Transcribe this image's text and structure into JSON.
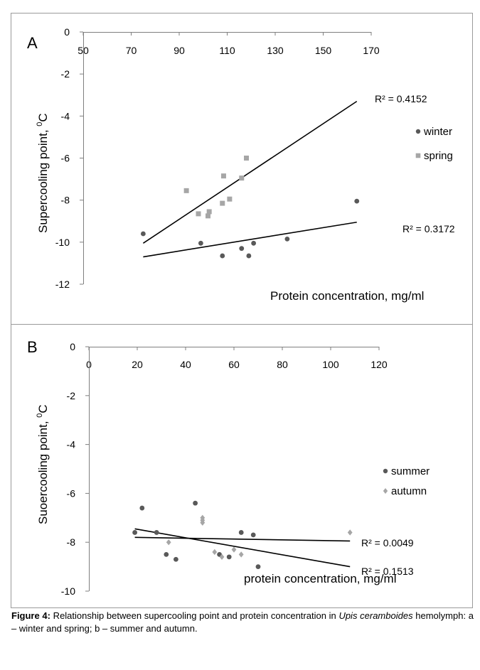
{
  "chart_data": [
    {
      "panel": "A",
      "type": "scatter",
      "xlabel": "Protein concentration, mg/ml",
      "ylabel": "Supercooling point, 0C",
      "ylabel_main": "Supercooling point, ",
      "ylabel_sup": "0",
      "ylabel_unit": "C",
      "xlim": [
        50,
        170
      ],
      "ylim": [
        -12,
        0
      ],
      "x_ticks": [
        "50",
        "70",
        "90",
        "110",
        "130",
        "150",
        "170"
      ],
      "y_ticks": [
        "0",
        "-2",
        "-4",
        "-6",
        "-8",
        "-10",
        "-12"
      ],
      "legend_position": "right",
      "series": [
        {
          "name": "winter",
          "marker": "circle",
          "color": "#595959",
          "points": [
            [
              75,
              -9.6
            ],
            [
              99,
              -10.05
            ],
            [
              108,
              -10.65
            ],
            [
              116,
              -10.3
            ],
            [
              119,
              -10.65
            ],
            [
              121,
              -10.05
            ],
            [
              135,
              -9.85
            ],
            [
              164,
              -8.05
            ]
          ],
          "trendline": {
            "from": [
              75,
              -10.7
            ],
            "to": [
              164,
              -9.05
            ],
            "r2_label": "R² = 0.3172"
          }
        },
        {
          "name": "spring",
          "marker": "square",
          "color": "#a6a6a6",
          "points": [
            [
              93,
              -7.55
            ],
            [
              98,
              -8.65
            ],
            [
              102,
              -8.75
            ],
            [
              102.5,
              -8.55
            ],
            [
              108,
              -8.15
            ],
            [
              108.5,
              -6.85
            ],
            [
              111,
              -7.95
            ],
            [
              116,
              -6.95
            ],
            [
              118,
              -6.0
            ]
          ],
          "trendline": {
            "from": [
              75,
              -10.05
            ],
            "to": [
              164,
              -3.3
            ],
            "r2_label": "R² = 0.4152"
          }
        }
      ]
    },
    {
      "panel": "B",
      "type": "scatter",
      "xlabel": "protein concentration, mg/ml",
      "ylabel": "Suoercooling point, 0C",
      "ylabel_main": "Suoercooling point, ",
      "ylabel_sup": "0",
      "ylabel_unit": "C",
      "xlim": [
        0,
        120
      ],
      "ylim": [
        -10,
        0
      ],
      "x_ticks": [
        "0",
        "20",
        "40",
        "60",
        "80",
        "100",
        "120"
      ],
      "y_ticks": [
        "0",
        "-2",
        "-4",
        "-6",
        "-8",
        "-10"
      ],
      "legend_position": "right",
      "series": [
        {
          "name": "summer",
          "marker": "circle",
          "color": "#595959",
          "points": [
            [
              19,
              -7.6
            ],
            [
              22,
              -6.6
            ],
            [
              28,
              -7.6
            ],
            [
              32,
              -8.5
            ],
            [
              36,
              -8.7
            ],
            [
              44,
              -6.4
            ],
            [
              54,
              -8.5
            ],
            [
              58,
              -8.6
            ],
            [
              63,
              -7.6
            ],
            [
              68,
              -7.7
            ],
            [
              70,
              -9.0
            ]
          ],
          "trendline": {
            "from": [
              19,
              -7.45
            ],
            "to": [
              108,
              -9.0
            ],
            "r2_label": "R² = 0.1513"
          }
        },
        {
          "name": "autumn",
          "marker": "diamond",
          "color": "#a6a6a6",
          "points": [
            [
              33,
              -8.0
            ],
            [
              47,
              -7.0
            ],
            [
              47,
              -7.1
            ],
            [
              47,
              -7.2
            ],
            [
              52,
              -8.4
            ],
            [
              55,
              -8.6
            ],
            [
              60,
              -8.3
            ],
            [
              63,
              -8.5
            ],
            [
              108,
              -7.6
            ]
          ],
          "trendline": {
            "from": [
              19,
              -7.8
            ],
            "to": [
              108,
              -7.95
            ],
            "r2_label": "R² = 0.0049"
          }
        }
      ]
    }
  ],
  "caption": {
    "label": "Figure 4:",
    "text_before_species": " Relationship between supercooling point and protein concentration in ",
    "species": "Upis ceramboides",
    "text_after_species": " hemolymph: a – winter and spring; b – summer and autumn."
  }
}
